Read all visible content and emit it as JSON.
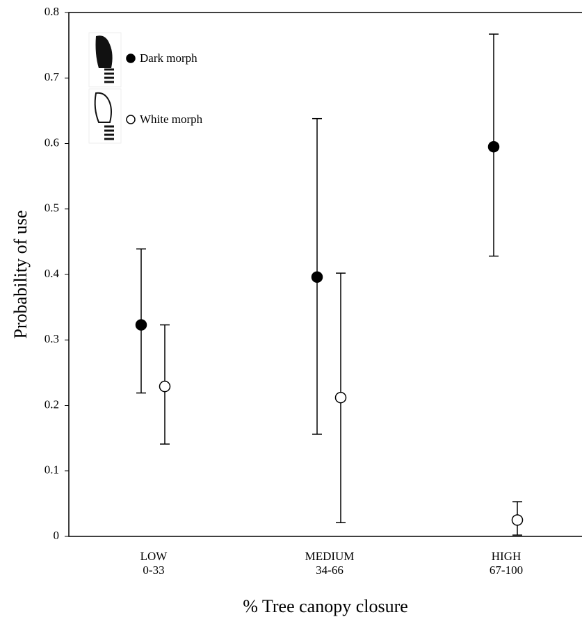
{
  "chart_data": {
    "type": "scatter",
    "x_label": "% Tree canopy closure",
    "y_label": "Probability of use",
    "categories": [
      [
        "LOW",
        "0-33"
      ],
      [
        "MEDIUM",
        "34-66"
      ],
      [
        "HIGH",
        "67-100"
      ]
    ],
    "series": [
      {
        "name": "Dark morph",
        "color": "#000000",
        "values": [
          0.323,
          0.396,
          0.595
        ],
        "lower": [
          0.219,
          0.156,
          0.428
        ],
        "upper": [
          0.439,
          0.638,
          0.767
        ]
      },
      {
        "name": "White morph",
        "color": "#ffffff",
        "values": [
          0.229,
          0.212,
          0.025
        ],
        "lower": [
          0.141,
          0.021,
          0.002
        ],
        "upper": [
          0.323,
          0.402,
          0.053
        ]
      }
    ],
    "ylim": [
      0,
      0.8
    ],
    "yticks": [
      0,
      0.1,
      0.2,
      0.3,
      0.4,
      0.5,
      0.6,
      0.7,
      0.8
    ],
    "legend": "upper left"
  }
}
